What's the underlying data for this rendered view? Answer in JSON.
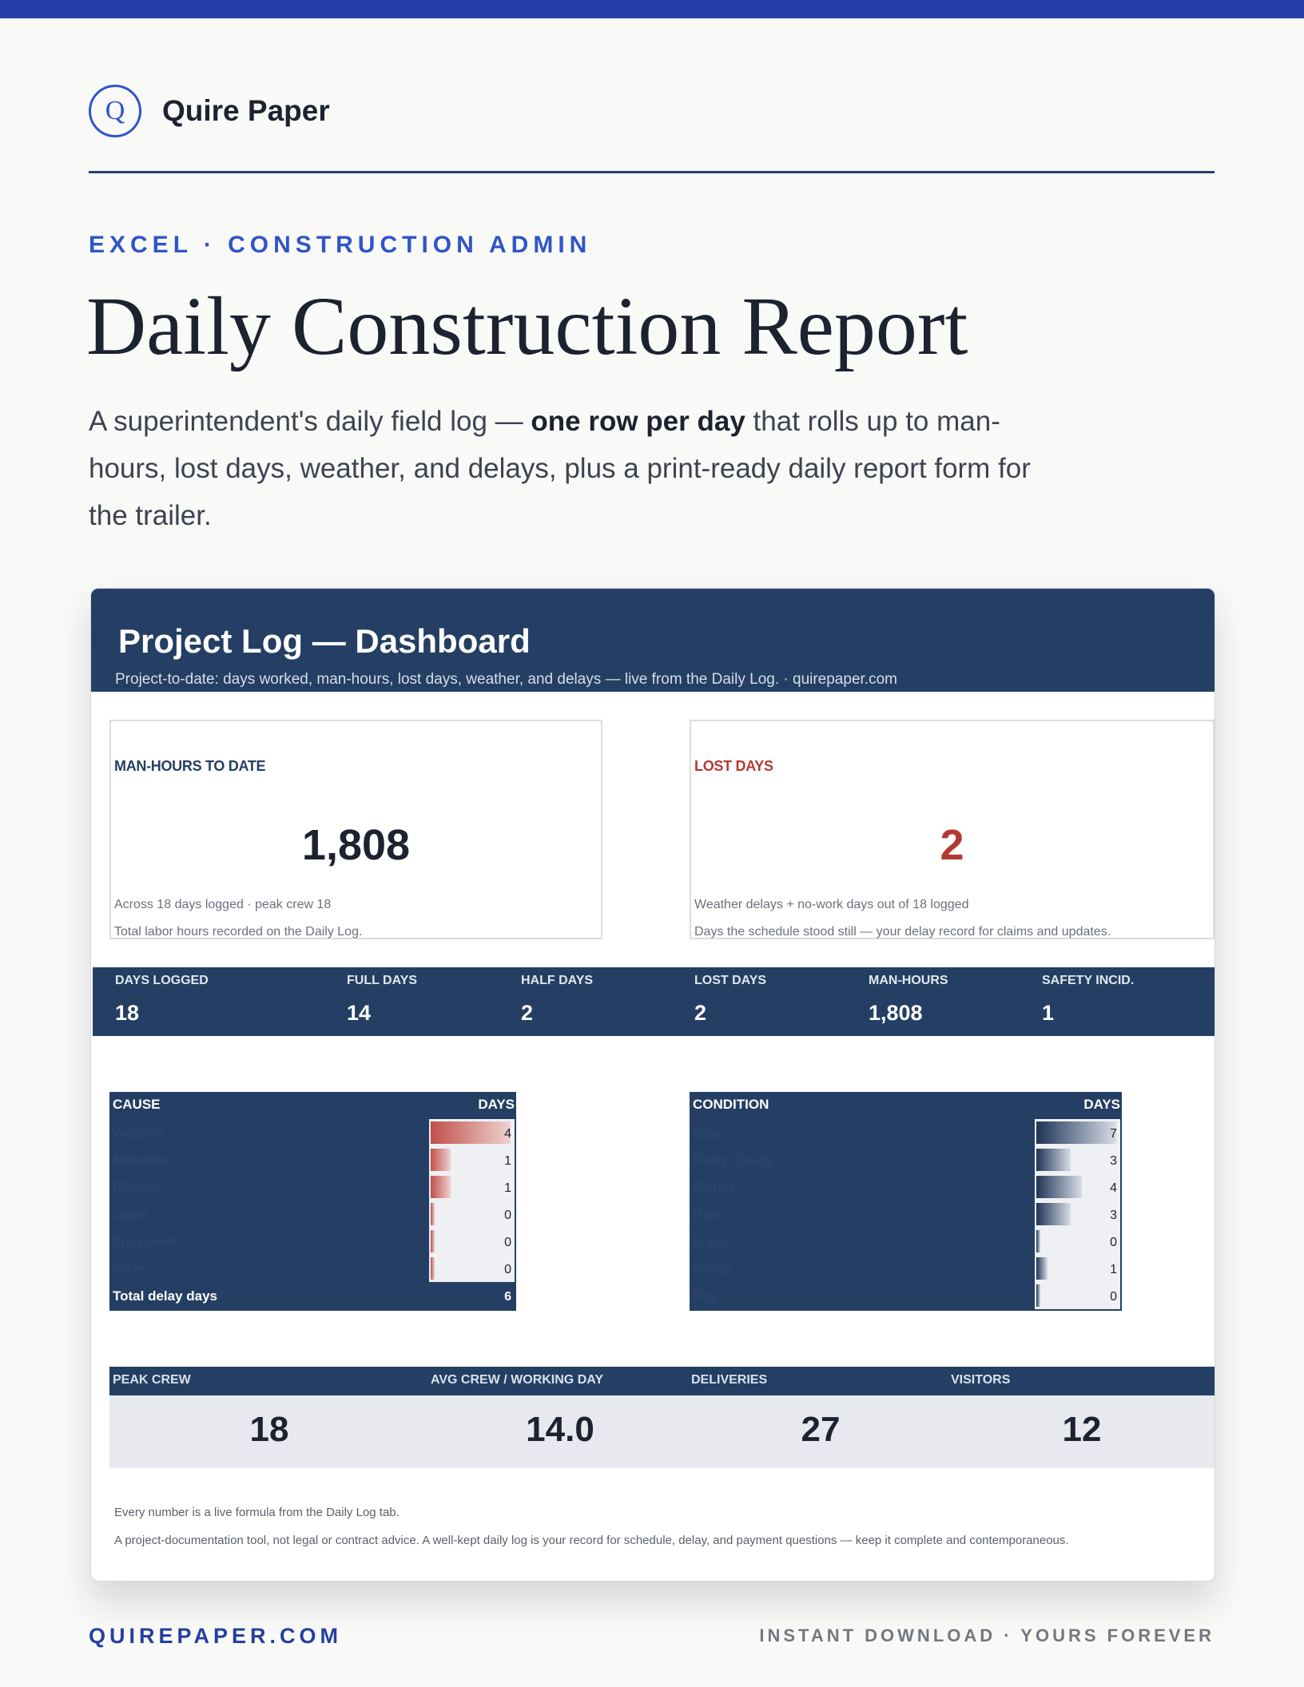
{
  "brand": {
    "logo_letter": "Q",
    "name": "Quire Paper"
  },
  "eyebrow": "EXCEL · CONSTRUCTION ADMIN",
  "title": "Daily Construction Report",
  "lede": {
    "before": "A superintendent's daily field log — ",
    "emphasis": "one row per day",
    "after": " that rolls up to man-hours, lost days, weather, and delays, plus a print-ready daily report form for the trailer."
  },
  "dashboard": {
    "title": "Project Log — Dashboard",
    "subtitle": "Project-to-date: days worked, man-hours, lost days, weather, and delays — live from the Daily Log. · quirepaper.com",
    "kpis": [
      {
        "label": "MAN-HOURS TO DATE",
        "value": "1,808",
        "note1": "Across 18 days logged · peak crew 18",
        "note2": "Total labor hours recorded on the Daily Log.",
        "color": "#1d2230"
      },
      {
        "label": "LOST DAYS",
        "value": "2",
        "note1": "Weather delays + no-work days out of 18 logged",
        "note2": "Days the schedule stood still — your delay record for claims and updates.",
        "color": "#b23a32"
      }
    ],
    "stats": [
      {
        "label": "DAYS LOGGED",
        "value": "18"
      },
      {
        "label": "FULL DAYS",
        "value": "14"
      },
      {
        "label": "HALF DAYS",
        "value": "2"
      },
      {
        "label": "LOST DAYS",
        "value": "2"
      },
      {
        "label": "MAN-HOURS",
        "value": "1,808"
      },
      {
        "label": "SAFETY INCID.",
        "value": "1"
      }
    ],
    "cause_table": {
      "header_label": "CAUSE",
      "header_value": "DAYS",
      "max": 4,
      "rows": [
        {
          "label": "Weather",
          "value": 4
        },
        {
          "label": "Materials",
          "value": 1
        },
        {
          "label": "RFI/Info",
          "value": 1
        },
        {
          "label": "Labor",
          "value": 0
        },
        {
          "label": "Equipment",
          "value": 0
        },
        {
          "label": "Other",
          "value": 0
        }
      ],
      "total_label": "Total delay days",
      "total_value": "6"
    },
    "condition_table": {
      "header_label": "CONDITION",
      "header_value": "DAYS",
      "max": 7,
      "rows": [
        {
          "label": "Clear",
          "value": 7
        },
        {
          "label": "Partly Cloudy",
          "value": 3
        },
        {
          "label": "Cloudy",
          "value": 4
        },
        {
          "label": "Rain",
          "value": 3
        },
        {
          "label": "Snow",
          "value": 0
        },
        {
          "label": "Windy",
          "value": 1
        },
        {
          "label": "Fog",
          "value": 0
        }
      ]
    },
    "bottom_stats": [
      {
        "label": "PEAK CREW",
        "value": "18"
      },
      {
        "label": "AVG CREW / WORKING DAY",
        "value": "14.0"
      },
      {
        "label": "DELIVERIES",
        "value": "27"
      },
      {
        "label": "VISITORS",
        "value": "12"
      }
    ],
    "footnotes": [
      "Every number is a live formula from the Daily Log tab.",
      "A project-documentation tool, not legal or contract advice. A well-kept daily log is your record for schedule, delay, and payment questions — keep it complete and contemporaneous."
    ]
  },
  "footer": {
    "left": "QUIREPAPER.COM",
    "right": "INSTANT DOWNLOAD · YOURS FOREVER"
  },
  "colors": {
    "accent": "#2440a8",
    "navy": "#243f63",
    "alert_red": "#b23a32"
  }
}
